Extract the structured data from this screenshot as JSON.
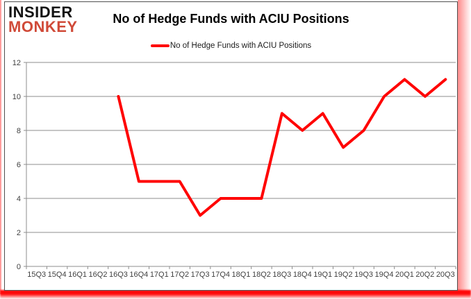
{
  "brand": {
    "line1": "INSIDER",
    "line2": "MONKEY",
    "accent_color": "#d04a38"
  },
  "header": {
    "title": "No of Hedge Funds with ACIU Positions"
  },
  "legend": {
    "label": "No of Hedge Funds with ACIU Positions",
    "color": "#ff0000"
  },
  "chart_data": {
    "type": "line",
    "title": "No of Hedge Funds with ACIU Positions",
    "categories": [
      "15Q3",
      "15Q4",
      "16Q1",
      "16Q2",
      "16Q3",
      "16Q4",
      "17Q1",
      "17Q2",
      "17Q3",
      "17Q4",
      "18Q1",
      "18Q2",
      "18Q3",
      "18Q4",
      "19Q1",
      "19Q2",
      "19Q3",
      "19Q4",
      "20Q1",
      "20Q2",
      "20Q3"
    ],
    "series": [
      {
        "name": "No of Hedge Funds with ACIU Positions",
        "color": "#ff0000",
        "values": [
          null,
          null,
          null,
          null,
          10,
          5,
          5,
          5,
          3,
          4,
          4,
          4,
          9,
          8,
          9,
          7,
          8,
          10,
          11,
          10,
          11
        ]
      }
    ],
    "ylim": [
      0,
      12
    ],
    "yticks": [
      0,
      2,
      4,
      6,
      8,
      10,
      12
    ],
    "grid": true,
    "legend_position": "top-center",
    "gridline_color": "#8c8c8c",
    "axis_color": "#8c8c8c",
    "tick_label_color": "#3f3f3f",
    "line_width": 4
  }
}
